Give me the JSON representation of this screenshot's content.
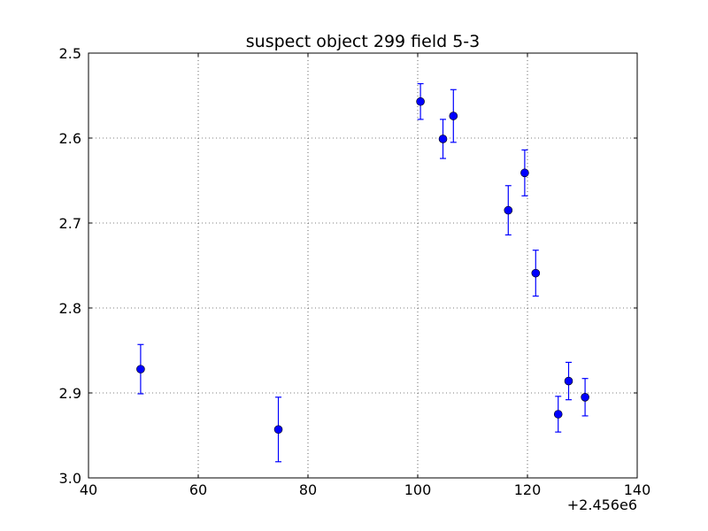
{
  "chart_data": {
    "type": "scatter",
    "title": "suspect object 299 field 5-3",
    "xlabel": "",
    "ylabel": "",
    "x_offset_label": "+2.456e6",
    "xlim": [
      40,
      140
    ],
    "ylim": [
      2.5,
      3.0
    ],
    "y_inverted": true,
    "x_ticks": [
      40,
      60,
      80,
      100,
      120,
      140
    ],
    "x_tick_labels": [
      "40",
      "60",
      "80",
      "100",
      "120",
      "140"
    ],
    "y_ticks": [
      2.5,
      2.6,
      2.7,
      2.8,
      2.9,
      3.0
    ],
    "y_tick_labels": [
      "2.5",
      "2.6",
      "2.7",
      "2.8",
      "2.9",
      "3.0"
    ],
    "grid": true,
    "color": "#0000ff",
    "points": [
      {
        "x": 49.5,
        "y": 2.872,
        "err": 0.029
      },
      {
        "x": 74.6,
        "y": 2.943,
        "err": 0.038
      },
      {
        "x": 100.5,
        "y": 2.557,
        "err": 0.021
      },
      {
        "x": 104.6,
        "y": 2.601,
        "err": 0.023
      },
      {
        "x": 106.5,
        "y": 2.574,
        "err": 0.031
      },
      {
        "x": 116.5,
        "y": 2.685,
        "err": 0.029
      },
      {
        "x": 119.5,
        "y": 2.641,
        "err": 0.027
      },
      {
        "x": 121.5,
        "y": 2.759,
        "err": 0.027
      },
      {
        "x": 125.6,
        "y": 2.925,
        "err": 0.021
      },
      {
        "x": 127.5,
        "y": 2.886,
        "err": 0.022
      },
      {
        "x": 130.5,
        "y": 2.905,
        "err": 0.022
      }
    ]
  }
}
